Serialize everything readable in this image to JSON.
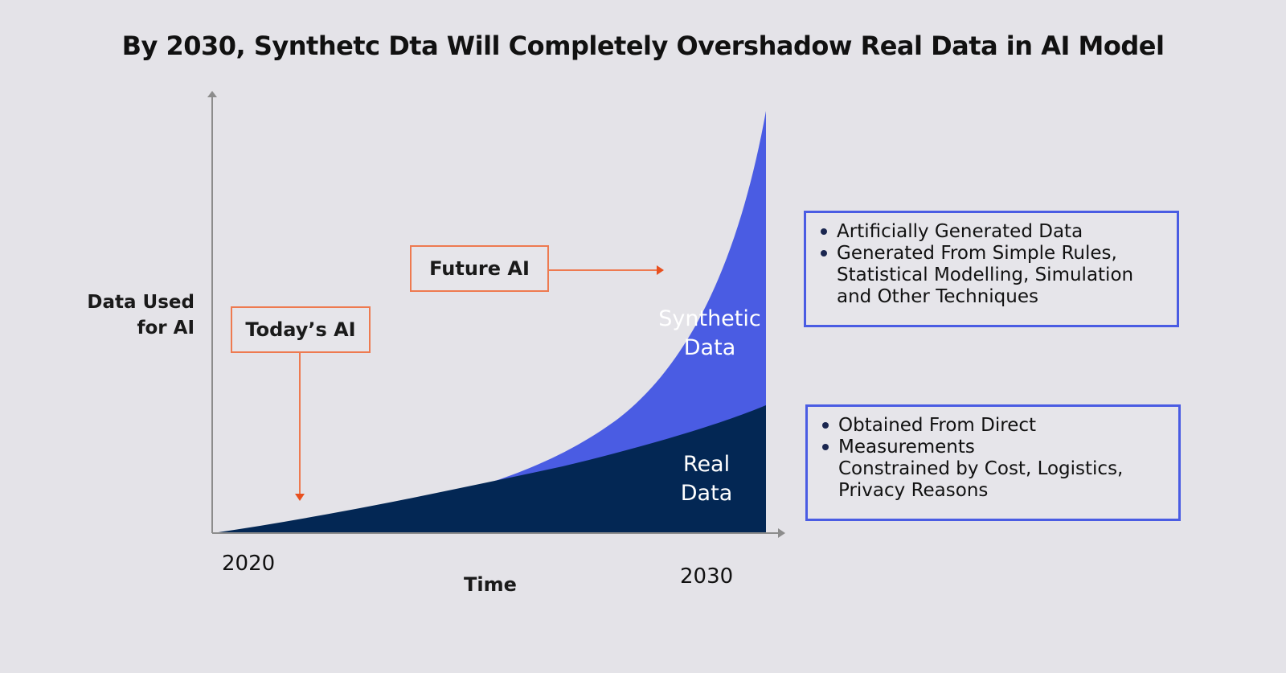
{
  "title": "By 2030, Synthetc Dta Will Completely Overshadow Real Data in AI Model",
  "y_axis_label_line1": "Data Used",
  "y_axis_label_line2": "for AI",
  "x_axis_label": "Time",
  "x_ticks": {
    "start": "2020",
    "end": "2030"
  },
  "callouts": {
    "today": "Today’s AI",
    "future": "Future AI"
  },
  "areas": {
    "synthetic": {
      "line1": "Synthetic",
      "line2": "Data",
      "color": "#4a5ce3"
    },
    "real": {
      "line1": "Real",
      "line2": "Data",
      "color": "#032754"
    }
  },
  "synthetic_box": {
    "bullet1": "Artificially Generated Data",
    "bullet2": "Generated From Simple Rules,",
    "bullet2_cont1": "Statistical Modelling, Simulation",
    "bullet2_cont2": "and Other Techniques"
  },
  "real_box": {
    "bullet1": "Obtained From Direct",
    "bullet2": "Measurements",
    "bullet2_cont1": "Constrained by Cost, Logistics,",
    "bullet2_cont2": "Privacy Reasons"
  },
  "colors": {
    "callout_border": "#ee7a50",
    "box_border": "#4a5ce3",
    "background": "#e4e3e8"
  }
}
